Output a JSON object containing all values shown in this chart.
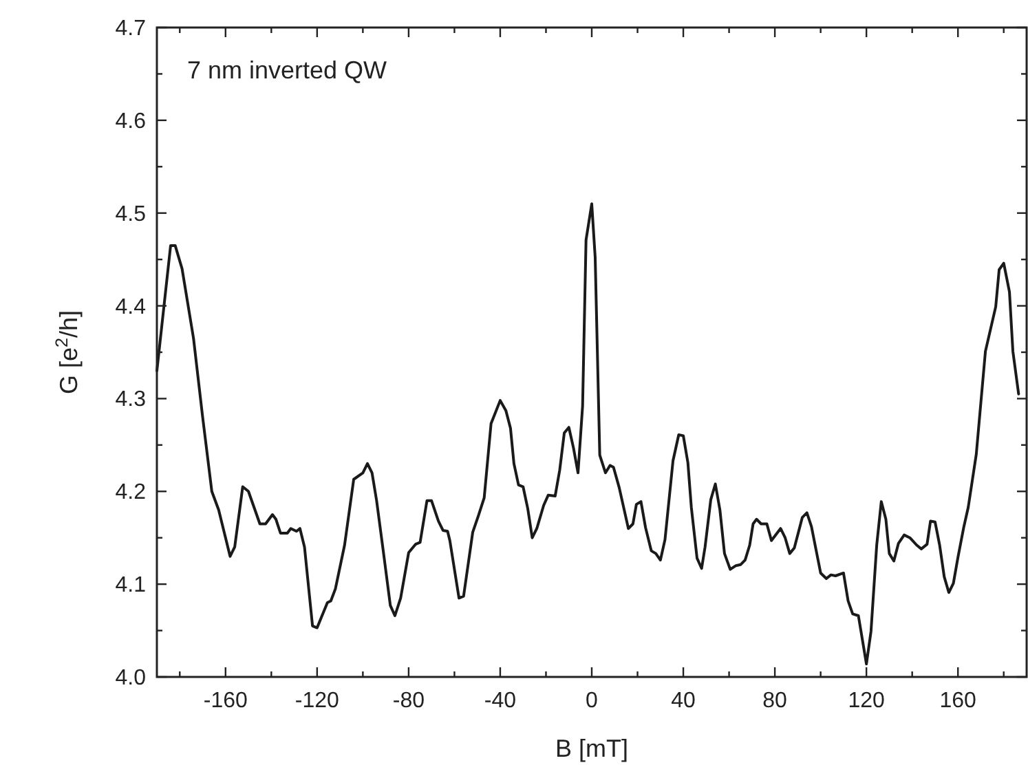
{
  "chart_data": {
    "type": "line",
    "xlabel": "B [mT]",
    "ylabel": "G [e$^{2}$/h]",
    "annotations": [
      "7 nm inverted QW"
    ],
    "xlim": [
      -190,
      190
    ],
    "ylim": [
      4.0,
      4.7
    ],
    "xticks": [
      {
        "value": -180,
        "label": null
      },
      -160,
      {
        "value": -140,
        "label": null
      },
      -120,
      {
        "value": -100,
        "label": null
      },
      -80,
      {
        "value": -60,
        "label": null
      },
      -40,
      {
        "value": -20,
        "label": null
      },
      0,
      {
        "value": 20,
        "label": null
      },
      40,
      {
        "value": 60,
        "label": null
      },
      80,
      {
        "value": 100,
        "label": null
      },
      120,
      {
        "value": 140,
        "label": null
      },
      160,
      {
        "value": 180,
        "label": null
      }
    ],
    "yticks": [
      {
        "value": 4.0,
        "label": "4.0"
      },
      {
        "value": 4.05,
        "label": null
      },
      4.1,
      {
        "value": 4.15,
        "label": null
      },
      4.2,
      {
        "value": 4.25,
        "label": null
      },
      4.3,
      {
        "value": 4.35,
        "label": null
      },
      4.4,
      {
        "value": 4.45,
        "label": null
      },
      4.5,
      {
        "value": 4.55,
        "label": null
      },
      4.6,
      {
        "value": 4.65,
        "label": null
      },
      4.7
    ],
    "grid": false,
    "marker": "none",
    "line_style": "solid",
    "series": [
      {
        "color": "#1a1a1a",
        "x": [
          -190,
          -188,
          -184,
          -182,
          -179,
          -174,
          -170,
          -166,
          -163,
          -158,
          -156,
          -152.5,
          -150,
          -145,
          -142.5,
          -139.5,
          -138,
          -136,
          -133,
          -131.5,
          -129,
          -127.5,
          -125.5,
          -122,
          -120,
          -115.5,
          -114,
          -112,
          -108,
          -104,
          -100,
          -98,
          -96,
          -94,
          -91,
          -88,
          -86,
          -83.5,
          -80,
          -77,
          -75,
          -72,
          -70,
          -67,
          -65,
          -63,
          -62,
          -58,
          -56,
          -52,
          -49.5,
          -47,
          -44,
          -40,
          -37.5,
          -35.5,
          -34,
          -32,
          -30,
          -28,
          -26,
          -24,
          -21,
          -19,
          -16,
          -14,
          -12,
          -10,
          -8,
          -6,
          -4,
          -2.5,
          0,
          1.5,
          3.5,
          6,
          8,
          9.5,
          12,
          16,
          18,
          19.5,
          21.5,
          23.5,
          26,
          28,
          30,
          32,
          35.5,
          38,
          40,
          42,
          43.5,
          46,
          48,
          49.5,
          52,
          54,
          56,
          58,
          60.5,
          63,
          65,
          67,
          69,
          70.5,
          72,
          74,
          76.5,
          78.5,
          82.5,
          84.5,
          86.5,
          88.5,
          92,
          94,
          96,
          100,
          102.5,
          104.5,
          106.5,
          110,
          112,
          114,
          116.5,
          120,
          122,
          124.5,
          126.5,
          128.5,
          130,
          132,
          134,
          136.5,
          139,
          142,
          144,
          146.5,
          148,
          150,
          152,
          154,
          156,
          158,
          160,
          162.5,
          164.5,
          168,
          172,
          176.5,
          178,
          180,
          182.5,
          184,
          186.5
        ],
        "values": [
          4.33,
          4.375,
          4.465,
          4.465,
          4.44,
          4.365,
          4.28,
          4.2,
          4.18,
          4.13,
          4.14,
          4.205,
          4.2,
          4.165,
          4.165,
          4.175,
          4.17,
          4.155,
          4.155,
          4.16,
          4.157,
          4.16,
          4.14,
          4.055,
          4.053,
          4.08,
          4.082,
          4.095,
          4.142,
          4.213,
          4.22,
          4.23,
          4.22,
          4.19,
          4.134,
          4.077,
          4.066,
          4.085,
          4.134,
          4.143,
          4.145,
          4.19,
          4.19,
          4.168,
          4.158,
          4.157,
          4.147,
          4.085,
          4.087,
          4.156,
          4.174,
          4.193,
          4.273,
          4.298,
          4.287,
          4.268,
          4.23,
          4.207,
          4.205,
          4.182,
          4.15,
          4.16,
          4.185,
          4.196,
          4.195,
          4.223,
          4.263,
          4.269,
          4.247,
          4.22,
          4.292,
          4.471,
          4.51,
          4.452,
          4.239,
          4.22,
          4.228,
          4.226,
          4.204,
          4.16,
          4.165,
          4.186,
          4.189,
          4.161,
          4.136,
          4.133,
          4.126,
          4.148,
          4.233,
          4.261,
          4.26,
          4.231,
          4.183,
          4.128,
          4.117,
          4.14,
          4.191,
          4.208,
          4.18,
          4.133,
          4.116,
          4.12,
          4.121,
          4.126,
          4.142,
          4.165,
          4.17,
          4.165,
          4.165,
          4.147,
          4.16,
          4.15,
          4.133,
          4.139,
          4.172,
          4.177,
          4.162,
          4.112,
          4.106,
          4.11,
          4.109,
          4.112,
          4.082,
          4.068,
          4.066,
          4.014,
          4.049,
          4.142,
          4.189,
          4.17,
          4.133,
          4.125,
          4.144,
          4.153,
          4.15,
          4.142,
          4.138,
          4.143,
          4.168,
          4.167,
          4.142,
          4.108,
          4.091,
          4.101,
          4.129,
          4.161,
          4.183,
          4.24,
          4.351,
          4.399,
          4.439,
          4.446,
          4.415,
          4.351,
          4.305
        ]
      }
    ]
  }
}
